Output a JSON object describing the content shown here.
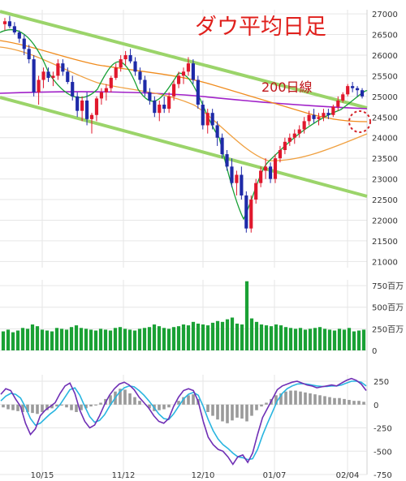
{
  "chart_data": {
    "type": "candlestick",
    "title": "ダウ平均日足",
    "annotation_200d": "200日線",
    "price_ylim": [
      20500,
      27250
    ],
    "price_ticks": [
      "27000",
      "26500",
      "26000",
      "25500",
      "25000",
      "24500",
      "24000",
      "23500",
      "23000",
      "22500",
      "22000",
      "21500",
      "21000"
    ],
    "volume_ticks": [
      "750百万",
      "500百万",
      "250百万",
      "0"
    ],
    "osc_ticks": [
      "250",
      "0",
      "-250",
      "-500",
      "-750"
    ],
    "x_ticks": [
      "10/15",
      "11/12",
      "12/10",
      "01/07",
      "02/04"
    ],
    "candles": [
      [
        26750,
        26900,
        26600,
        26820
      ],
      [
        26820,
        26950,
        26650,
        26700
      ],
      [
        26700,
        26800,
        26500,
        26550
      ],
      [
        26550,
        26600,
        26300,
        26400
      ],
      [
        26400,
        26500,
        26000,
        26150
      ],
      [
        26150,
        26250,
        25800,
        25900
      ],
      [
        25900,
        26000,
        25000,
        25100
      ],
      [
        25100,
        25500,
        24800,
        25400
      ],
      [
        25400,
        25700,
        25200,
        25600
      ],
      [
        25600,
        25700,
        25350,
        25450
      ],
      [
        25450,
        25600,
        25250,
        25500
      ],
      [
        25500,
        25900,
        25400,
        25800
      ],
      [
        25800,
        25900,
        25500,
        25600
      ],
      [
        25600,
        25700,
        25300,
        25350
      ],
      [
        25350,
        25500,
        24900,
        25000
      ],
      [
        25000,
        25100,
        24500,
        24650
      ],
      [
        24650,
        25000,
        24400,
        24900
      ],
      [
        24900,
        25100,
        24300,
        24450
      ],
      [
        24450,
        24600,
        24100,
        24550
      ],
      [
        24550,
        25000,
        24400,
        24950
      ],
      [
        24950,
        25200,
        24800,
        25100
      ],
      [
        25100,
        25300,
        24900,
        25200
      ],
      [
        25200,
        25500,
        25100,
        25450
      ],
      [
        25450,
        25800,
        25400,
        25700
      ],
      [
        25700,
        26000,
        25600,
        25900
      ],
      [
        25900,
        26100,
        25750,
        26000
      ],
      [
        26000,
        26150,
        25800,
        25850
      ],
      [
        25850,
        25950,
        25500,
        25600
      ],
      [
        25600,
        25700,
        25300,
        25400
      ],
      [
        25400,
        25500,
        25000,
        25100
      ],
      [
        25100,
        25200,
        24800,
        24900
      ],
      [
        24900,
        25000,
        24500,
        24600
      ],
      [
        24600,
        24900,
        24400,
        24800
      ],
      [
        24800,
        25000,
        24600,
        24700
      ],
      [
        24700,
        25100,
        24600,
        25000
      ],
      [
        25000,
        25400,
        24900,
        25300
      ],
      [
        25300,
        25600,
        25200,
        25500
      ],
      [
        25500,
        25700,
        25300,
        25600
      ],
      [
        25600,
        25950,
        25500,
        25800
      ],
      [
        25800,
        25900,
        25300,
        25400
      ],
      [
        25400,
        25500,
        24700,
        24800
      ],
      [
        24800,
        24900,
        24200,
        24300
      ],
      [
        24300,
        24700,
        24100,
        24600
      ],
      [
        24600,
        24700,
        24200,
        24300
      ],
      [
        24300,
        24400,
        23800,
        24000
      ],
      [
        24000,
        24100,
        23500,
        23600
      ],
      [
        23600,
        23700,
        23200,
        23300
      ],
      [
        23300,
        23500,
        22800,
        22900
      ],
      [
        22900,
        23200,
        22600,
        23100
      ],
      [
        23100,
        23300,
        22500,
        22600
      ],
      [
        22600,
        22700,
        21700,
        21800
      ],
      [
        21800,
        22600,
        21700,
        22500
      ],
      [
        22500,
        23000,
        22400,
        22900
      ],
      [
        22900,
        23300,
        22800,
        23200
      ],
      [
        23200,
        23500,
        23000,
        23300
      ],
      [
        23300,
        23400,
        22900,
        23000
      ],
      [
        23000,
        23600,
        22900,
        23500
      ],
      [
        23500,
        23800,
        23400,
        23700
      ],
      [
        23700,
        24000,
        23600,
        23900
      ],
      [
        23900,
        24100,
        23800,
        24000
      ],
      [
        24000,
        24200,
        23850,
        24100
      ],
      [
        24100,
        24300,
        24000,
        24200
      ],
      [
        24200,
        24500,
        24100,
        24400
      ],
      [
        24400,
        24650,
        24300,
        24550
      ],
      [
        24550,
        24700,
        24350,
        24450
      ],
      [
        24450,
        24600,
        24300,
        24500
      ],
      [
        24500,
        24700,
        24400,
        24600
      ],
      [
        24600,
        24700,
        24450,
        24550
      ],
      [
        24550,
        24800,
        24500,
        24750
      ],
      [
        24750,
        25000,
        24650,
        24900
      ],
      [
        24900,
        25100,
        24850,
        25050
      ],
      [
        25050,
        25300,
        25000,
        25250
      ],
      [
        25250,
        25350,
        25100,
        25200
      ],
      [
        25200,
        25250,
        25000,
        25150
      ],
      [
        25150,
        25200,
        24950,
        25000
      ]
    ],
    "volume": [
      220,
      240,
      210,
      230,
      260,
      250,
      300,
      280,
      240,
      230,
      220,
      260,
      250,
      240,
      270,
      290,
      260,
      250,
      240,
      230,
      250,
      240,
      230,
      260,
      270,
      250,
      240,
      230,
      250,
      260,
      270,
      300,
      280,
      260,
      250,
      270,
      280,
      300,
      290,
      330,
      310,
      300,
      290,
      320,
      340,
      330,
      360,
      380,
      310,
      300,
      800,
      370,
      330,
      300,
      290,
      280,
      300,
      290,
      270,
      260,
      250,
      260,
      240,
      250,
      260,
      270,
      250,
      240,
      230,
      250,
      240,
      260,
      220,
      230,
      240
    ],
    "osc_hist": [
      -30,
      -50,
      -60,
      -70,
      -80,
      -80,
      -90,
      -100,
      -80,
      -60,
      -40,
      -20,
      -10,
      -30,
      -60,
      -80,
      -60,
      -40,
      -20,
      -10,
      20,
      60,
      100,
      140,
      170,
      160,
      120,
      80,
      40,
      0,
      -40,
      -70,
      -60,
      -50,
      -30,
      0,
      40,
      80,
      100,
      110,
      60,
      0,
      -80,
      -120,
      -160,
      -180,
      -200,
      -170,
      -140,
      -150,
      -180,
      -120,
      -60,
      -20,
      20,
      60,
      100,
      120,
      140,
      150,
      150,
      140,
      130,
      120,
      110,
      100,
      90,
      80,
      70,
      70,
      60,
      50,
      40,
      40,
      30
    ],
    "osc_line1": [
      110,
      170,
      150,
      60,
      -20,
      -200,
      -320,
      -260,
      -120,
      -60,
      -20,
      20,
      120,
      200,
      230,
      120,
      -60,
      -180,
      -250,
      -220,
      -120,
      0,
      100,
      170,
      220,
      240,
      210,
      160,
      80,
      20,
      -40,
      -120,
      -180,
      -200,
      -150,
      -20,
      80,
      150,
      170,
      150,
      30,
      -180,
      -350,
      -430,
      -480,
      -500,
      -560,
      -640,
      -560,
      -540,
      -620,
      -520,
      -320,
      -140,
      -40,
      60,
      160,
      200,
      220,
      240,
      250,
      230,
      210,
      200,
      180,
      190,
      200,
      210,
      200,
      230,
      260,
      280,
      260,
      220,
      150
    ],
    "osc_line2": [
      40,
      90,
      120,
      110,
      70,
      -30,
      -150,
      -220,
      -200,
      -150,
      -100,
      -60,
      0,
      80,
      160,
      180,
      100,
      -20,
      -130,
      -190,
      -170,
      -110,
      -20,
      60,
      130,
      180,
      200,
      190,
      150,
      100,
      40,
      -30,
      -100,
      -150,
      -160,
      -100,
      -20,
      60,
      110,
      130,
      100,
      -20,
      -160,
      -280,
      -370,
      -430,
      -470,
      -520,
      -560,
      -570,
      -590,
      -580,
      -480,
      -330,
      -200,
      -80,
      40,
      120,
      170,
      200,
      220,
      225,
      220,
      210,
      200,
      195,
      195,
      200,
      200,
      210,
      230,
      250,
      250,
      240,
      200
    ]
  }
}
